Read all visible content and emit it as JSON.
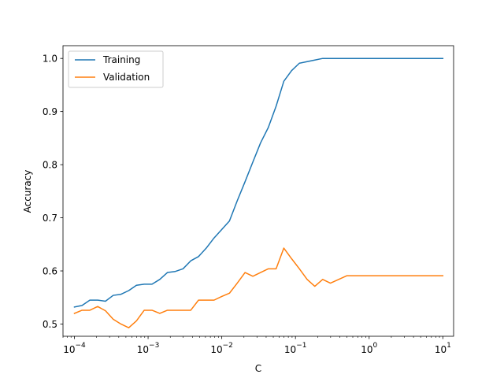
{
  "chart_data": {
    "type": "line",
    "xscale": "log",
    "xlabel": "C",
    "ylabel": "Accuracy",
    "xlim": [
      7e-05,
      14
    ],
    "ylim": [
      0.477,
      1.024
    ],
    "xticks": [
      {
        "value": 0.0001,
        "base": "10",
        "exp": "−4"
      },
      {
        "value": 0.001,
        "base": "10",
        "exp": "−3"
      },
      {
        "value": 0.01,
        "base": "10",
        "exp": "−2"
      },
      {
        "value": 0.1,
        "base": "10",
        "exp": "−1"
      },
      {
        "value": 1,
        "base": "10",
        "exp": "0"
      },
      {
        "value": 10,
        "base": "10",
        "exp": "1"
      }
    ],
    "yticks": [
      "0.5",
      "0.6",
      "0.7",
      "0.8",
      "0.9",
      "1.0"
    ],
    "legend": {
      "position": "top-left",
      "frame": true
    },
    "x": [
      0.0001,
      0.000127,
      0.000162,
      0.000207,
      0.000264,
      0.000336,
      0.000428,
      0.000546,
      0.000695,
      0.000886,
      0.00113,
      0.00144,
      0.00183,
      0.00234,
      0.00298,
      0.00379,
      0.00483,
      0.00616,
      0.00785,
      0.01,
      0.0127,
      0.0162,
      0.0207,
      0.0264,
      0.0336,
      0.0428,
      0.0546,
      0.0695,
      0.0886,
      0.113,
      0.144,
      0.183,
      0.234,
      0.298,
      0.5,
      1,
      2,
      5,
      10
    ],
    "series": [
      {
        "name": "Training",
        "color": "#1f77b4",
        "values": [
          0.532,
          0.535,
          0.545,
          0.545,
          0.543,
          0.554,
          0.556,
          0.563,
          0.573,
          0.575,
          0.575,
          0.584,
          0.597,
          0.599,
          0.604,
          0.619,
          0.627,
          0.643,
          0.662,
          0.678,
          0.694,
          0.732,
          0.768,
          0.805,
          0.841,
          0.87,
          0.91,
          0.957,
          0.977,
          0.991,
          0.994,
          0.997,
          1.0,
          1.0,
          1.0,
          1.0,
          1.0,
          1.0,
          1.0
        ]
      },
      {
        "name": "Validation",
        "color": "#ff7f0e",
        "values": [
          0.52,
          0.526,
          0.526,
          0.533,
          0.525,
          0.509,
          0.5,
          0.493,
          0.506,
          0.526,
          0.526,
          0.52,
          0.526,
          0.526,
          0.526,
          0.526,
          0.545,
          0.545,
          0.545,
          0.552,
          0.558,
          0.577,
          0.597,
          0.59,
          0.597,
          0.604,
          0.604,
          0.643,
          0.623,
          0.604,
          0.584,
          0.571,
          0.584,
          0.577,
          0.591,
          0.591,
          0.591,
          0.591,
          0.591
        ]
      }
    ]
  }
}
